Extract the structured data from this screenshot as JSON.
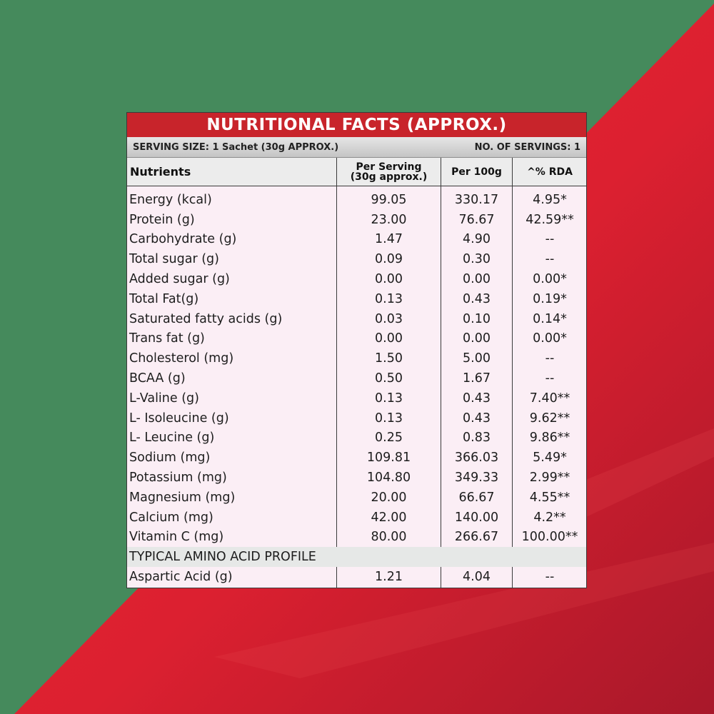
{
  "colors": {
    "background_green": "#458a5c",
    "background_red": "#e0242f",
    "title_bar": "#c8242b",
    "panel": "#fbeef5"
  },
  "table": {
    "title": "NUTRITIONAL FACTS (APPROX.)",
    "serving_size": "SERVING SIZE: 1 Sachet (30g APPROX.)",
    "servings_count": "NO. OF SERVINGS: 1",
    "headers": {
      "nutrients": "Nutrients",
      "per_serving_line1": "Per Serving",
      "per_serving_line2": "(30g approx.)",
      "per_100g": "Per 100g",
      "rda": "^% RDA"
    },
    "rows": [
      {
        "name": "Energy (kcal)",
        "serving": "99.05",
        "per100": "330.17",
        "rda": "4.95*"
      },
      {
        "name": "Protein (g)",
        "serving": "23.00",
        "per100": "76.67",
        "rda": "42.59**"
      },
      {
        "name": "Carbohydrate (g)",
        "serving": "1.47",
        "per100": "4.90",
        "rda": "--"
      },
      {
        "name": "Total sugar (g)",
        "serving": "0.09",
        "per100": "0.30",
        "rda": "--"
      },
      {
        "name": "Added sugar (g)",
        "serving": "0.00",
        "per100": "0.00",
        "rda": "0.00*"
      },
      {
        "name": "Total Fat(g)",
        "serving": "0.13",
        "per100": "0.43",
        "rda": "0.19*"
      },
      {
        "name": "Saturated fatty acids (g)",
        "serving": "0.03",
        "per100": "0.10",
        "rda": "0.14*"
      },
      {
        "name": "Trans fat (g)",
        "serving": "0.00",
        "per100": "0.00",
        "rda": "0.00*"
      },
      {
        "name": "Cholesterol (mg)",
        "serving": "1.50",
        "per100": "5.00",
        "rda": "--"
      },
      {
        "name": "BCAA (g)",
        "serving": "0.50",
        "per100": "1.67",
        "rda": "--"
      },
      {
        "name": "L-Valine (g)",
        "serving": "0.13",
        "per100": "0.43",
        "rda": "7.40**"
      },
      {
        "name": "L- Isoleucine (g)",
        "serving": "0.13",
        "per100": "0.43",
        "rda": "9.62**"
      },
      {
        "name": "L- Leucine (g)",
        "serving": "0.25",
        "per100": "0.83",
        "rda": "9.86**"
      },
      {
        "name": "Sodium (mg)",
        "serving": "109.81",
        "per100": "366.03",
        "rda": "5.49*"
      },
      {
        "name": "Potassium (mg)",
        "serving": "104.80",
        "per100": "349.33",
        "rda": "2.99**"
      },
      {
        "name": "Magnesium (mg)",
        "serving": "20.00",
        "per100": "66.67",
        "rda": "4.55**"
      },
      {
        "name": "Calcium (mg)",
        "serving": "42.00",
        "per100": "140.00",
        "rda": "4.2**"
      },
      {
        "name": "Vitamin C (mg)",
        "serving": "80.00",
        "per100": "266.67",
        "rda": "100.00**"
      },
      {
        "name": "TYPICAL AMINO ACID PROFILE",
        "serving": "",
        "per100": "",
        "rda": "",
        "section": true
      },
      {
        "name": "Aspartic Acid (g)",
        "serving": "1.21",
        "per100": "4.04",
        "rda": "--"
      }
    ]
  }
}
